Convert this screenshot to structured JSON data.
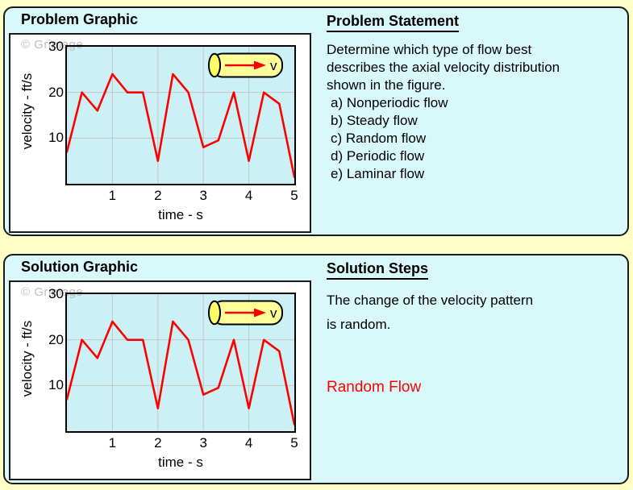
{
  "page": {
    "background": "#FFFFC8",
    "panel_background": "#D9F8FA",
    "watermark_color": "#BDBDBD"
  },
  "watermark": "© Grimage",
  "problem_panel": {
    "graphic_title": "Problem Graphic",
    "statement_title": "Problem Statement",
    "statement_lines": [
      "Determine which type of flow best",
      "describes the axial velocity distribution",
      "shown in the figure."
    ],
    "options": [
      "a) Nonperiodic flow",
      "b) Steady flow",
      "c) Random flow",
      "d) Periodic flow",
      "e) Laminar flow"
    ]
  },
  "solution_panel": {
    "graphic_title": "Solution Graphic",
    "steps_title": "Solution Steps",
    "steps_lines": [
      "The change of the velocity pattern",
      "is random."
    ],
    "answer": "Random Flow",
    "answer_color": "#FF0000"
  },
  "chart_data": {
    "type": "line",
    "title": "",
    "xlabel": "time - s",
    "ylabel": "velocity - ft/s",
    "x": [
      0,
      0.33,
      0.67,
      1,
      1.33,
      1.67,
      2,
      2.33,
      2.67,
      3,
      3.33,
      3.67,
      4,
      4.33,
      4.67,
      5
    ],
    "values": [
      7,
      20,
      16,
      24,
      20,
      20,
      5,
      24,
      20,
      8,
      9.5,
      20,
      5,
      20,
      17.5,
      1.5
    ],
    "xlim": [
      0,
      5
    ],
    "ylim": [
      0,
      30
    ],
    "xticks": [
      1,
      2,
      3,
      4,
      5
    ],
    "yticks": [
      10,
      20,
      30
    ],
    "grid": true,
    "legend": "none",
    "line_color": "#FF0000",
    "plot_bg": "#CBF1F6",
    "grid_color": "#C6C6C6",
    "pipe_fill": "#FFFF99",
    "pipe_end_fill": "#FFFF66",
    "arrow_color": "#FF0000",
    "pipe_label": "v"
  }
}
